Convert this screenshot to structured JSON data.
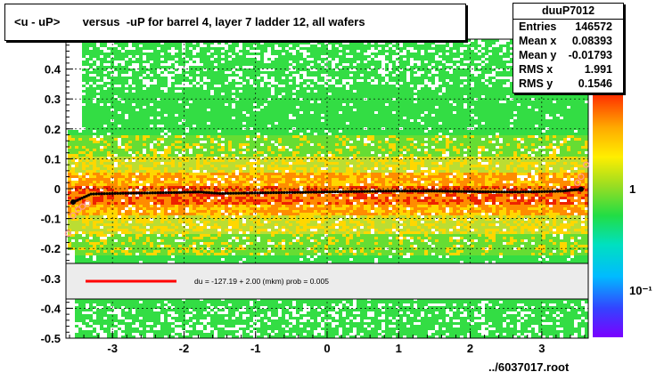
{
  "title": "<u - uP>       versus  -uP for barrel 4, layer 7 ladder 12, all wafers",
  "stats": {
    "name": "duuP7012",
    "rows": [
      {
        "label": "Entries",
        "value": "146572"
      },
      {
        "label": "Mean x",
        "value": "0.08393"
      },
      {
        "label": "Mean y",
        "value": "-0.01793"
      },
      {
        "label": "RMS x",
        "value": "1.991"
      },
      {
        "label": "RMS y",
        "value": "0.1546"
      }
    ]
  },
  "legend": {
    "fit_text": "du = -127.19 +  2.00 (mkm) prob = 0.005",
    "line_color": "#ff0000"
  },
  "footer": "../6037017.root",
  "colors": {
    "green": "#33dd44",
    "yellow": "#ffd700",
    "orange": "#ff8c00",
    "red": "#ee2200",
    "profile": "#000000",
    "fit": "#ff0000",
    "outlier": "#ff9999"
  },
  "chart_data": {
    "type": "heatmap",
    "xlim": [
      -3.65,
      3.65
    ],
    "ylim": [
      -0.5,
      0.5
    ],
    "x_ticks": [
      -3,
      -2,
      -1,
      0,
      1,
      2,
      3
    ],
    "y_ticks": [
      -0.5,
      -0.4,
      -0.3,
      -0.2,
      -0.1,
      0,
      0.1,
      0.2,
      0.3,
      0.4
    ],
    "y_tick_labels": [
      "-0.5",
      "-0.4",
      "-0.3",
      "-0.2",
      "-0.1",
      "0",
      "0.1",
      "0.2",
      "0.3",
      "0.4"
    ],
    "colorbar_labels": [
      {
        "value": 1,
        "label": "1"
      },
      {
        "value": 0.1,
        "label": "10⁻¹"
      }
    ],
    "grid": true,
    "profile": {
      "x": [
        -3.55,
        -3.3,
        -3.0,
        -2.7,
        -2.4,
        -2.1,
        -1.8,
        -1.5,
        -1.2,
        -0.9,
        -0.6,
        -0.3,
        0.0,
        0.3,
        0.6,
        0.9,
        1.2,
        1.5,
        1.8,
        2.1,
        2.4,
        2.7,
        3.0,
        3.3,
        3.55
      ],
      "y": [
        -0.045,
        -0.018,
        -0.016,
        -0.015,
        -0.014,
        -0.013,
        -0.011,
        -0.016,
        -0.015,
        -0.014,
        -0.013,
        -0.012,
        -0.011,
        -0.01,
        -0.009,
        -0.008,
        -0.008,
        -0.008,
        -0.009,
        -0.01,
        -0.011,
        -0.011,
        -0.01,
        -0.008,
        -0.002
      ]
    },
    "outliers": {
      "x": [
        -3.62,
        -3.55,
        -3.48,
        -3.42,
        -3.35,
        3.5,
        3.55,
        3.62
      ],
      "y": [
        -0.15,
        -0.09,
        -0.07,
        -0.06,
        -0.05,
        0.02,
        0.04,
        0.08
      ]
    },
    "fit": {
      "intercept_mkm": -127.19,
      "slope_mkm": 2.0,
      "prob": 0.005
    }
  }
}
